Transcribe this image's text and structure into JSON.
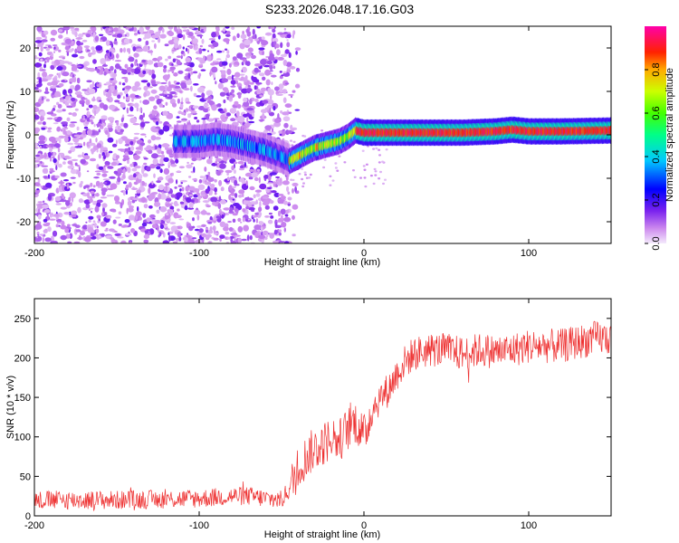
{
  "title": "S233.2026.048.17.16.G03",
  "chart_data": [
    {
      "type": "heatmap",
      "name": "spectrogram",
      "xlabel": "Height of straight line (km)",
      "ylabel": "Frequency (Hz)",
      "xlim": [
        -200,
        150
      ],
      "ylim": [
        -25,
        25
      ],
      "xticks": [
        "-200",
        "-100",
        "0",
        "100"
      ],
      "xtick_values": [
        -200,
        -100,
        0,
        100
      ],
      "yticks": [
        "-20",
        "-10",
        "0",
        "10",
        "20"
      ],
      "ytick_values": [
        -20,
        -10,
        0,
        10,
        20
      ],
      "ridge": {
        "x": [
          -115,
          -100,
          -90,
          -80,
          -70,
          -60,
          -50,
          -45,
          -40,
          -35,
          -30,
          -25,
          -20,
          -15,
          -10,
          -5,
          0,
          10,
          20,
          40,
          60,
          80,
          90,
          100,
          120,
          150
        ],
        "y": [
          -1.5,
          -1.5,
          -1.0,
          -1.5,
          -2.5,
          -3.5,
          -5.0,
          -6.0,
          -5.0,
          -4.0,
          -3.0,
          -2.5,
          -2.0,
          -1.5,
          -0.5,
          1.0,
          0.5,
          0.5,
          0.5,
          0.5,
          0.5,
          0.8,
          1.2,
          0.8,
          0.8,
          1.0
        ]
      },
      "colorbar": {
        "label": "Normalized spectral amplitude",
        "range": [
          0.0,
          1.0
        ],
        "ticks": [
          "0.0",
          "0.2",
          "0.4",
          "0.6",
          "0.8"
        ],
        "tick_values": [
          0.0,
          0.2,
          0.4,
          0.6,
          0.8
        ]
      }
    },
    {
      "type": "line",
      "name": "snr",
      "xlabel": "Height of straight line (km)",
      "ylabel": "SNR (10 * v/v)",
      "xlim": [
        -200,
        150
      ],
      "ylim": [
        0,
        275
      ],
      "xticks": [
        "-200",
        "-100",
        "0",
        "100"
      ],
      "xtick_values": [
        -200,
        -100,
        0,
        100
      ],
      "yticks": [
        "0",
        "50",
        "100",
        "150",
        "200",
        "250"
      ],
      "ytick_values": [
        0,
        50,
        100,
        150,
        200,
        250
      ],
      "series": [
        {
          "name": "SNR",
          "color": "#ee3333",
          "x": [
            -200,
            -150,
            -100,
            -80,
            -70,
            -60,
            -50,
            -45,
            -40,
            -35,
            -30,
            -25,
            -20,
            -15,
            -10,
            -5,
            0,
            5,
            10,
            15,
            20,
            25,
            30,
            40,
            50,
            60,
            70,
            80,
            90,
            100,
            110,
            120,
            130,
            140,
            150
          ],
          "values": [
            20,
            20,
            22,
            25,
            25,
            22,
            20,
            35,
            60,
            75,
            85,
            90,
            100,
            95,
            110,
            120,
            100,
            135,
            150,
            160,
            180,
            195,
            205,
            210,
            210,
            205,
            210,
            208,
            210,
            215,
            215,
            215,
            220,
            225,
            225
          ]
        }
      ]
    }
  ]
}
